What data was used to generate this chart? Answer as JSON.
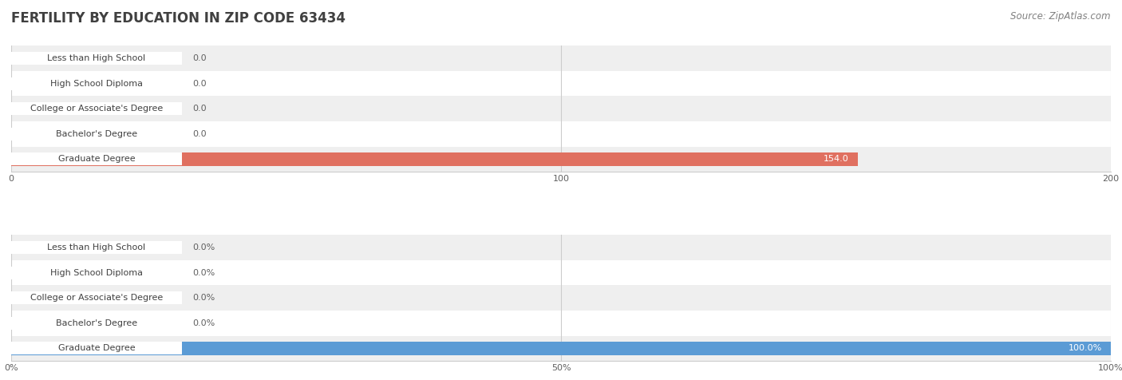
{
  "title": "FERTILITY BY EDUCATION IN ZIP CODE 63434",
  "source": "Source: ZipAtlas.com",
  "categories": [
    "Less than High School",
    "High School Diploma",
    "College or Associate's Degree",
    "Bachelor's Degree",
    "Graduate Degree"
  ],
  "values_abs": [
    0.0,
    0.0,
    0.0,
    0.0,
    154.0
  ],
  "values_pct": [
    0.0,
    0.0,
    0.0,
    0.0,
    100.0
  ],
  "xlim_abs": [
    0,
    200.0
  ],
  "xlim_pct": [
    0,
    100.0
  ],
  "xticks_abs": [
    0.0,
    100.0,
    200.0
  ],
  "xticks_pct": [
    0.0,
    50.0,
    100.0
  ],
  "bar_color_active_abs": "#e07060",
  "bar_color_inactive_abs": "#f0a898",
  "bar_color_active_pct": "#5b9bd5",
  "bar_color_inactive_pct": "#a8c8e8",
  "row_bg_color_odd": "#efefef",
  "row_bg_color_even": "#ffffff",
  "title_color": "#404040",
  "title_fontsize": 12,
  "bar_height": 0.55,
  "label_fontsize": 8.0,
  "tick_fontsize": 8.0,
  "value_fontsize": 8.0,
  "source_fontsize": 8.5
}
